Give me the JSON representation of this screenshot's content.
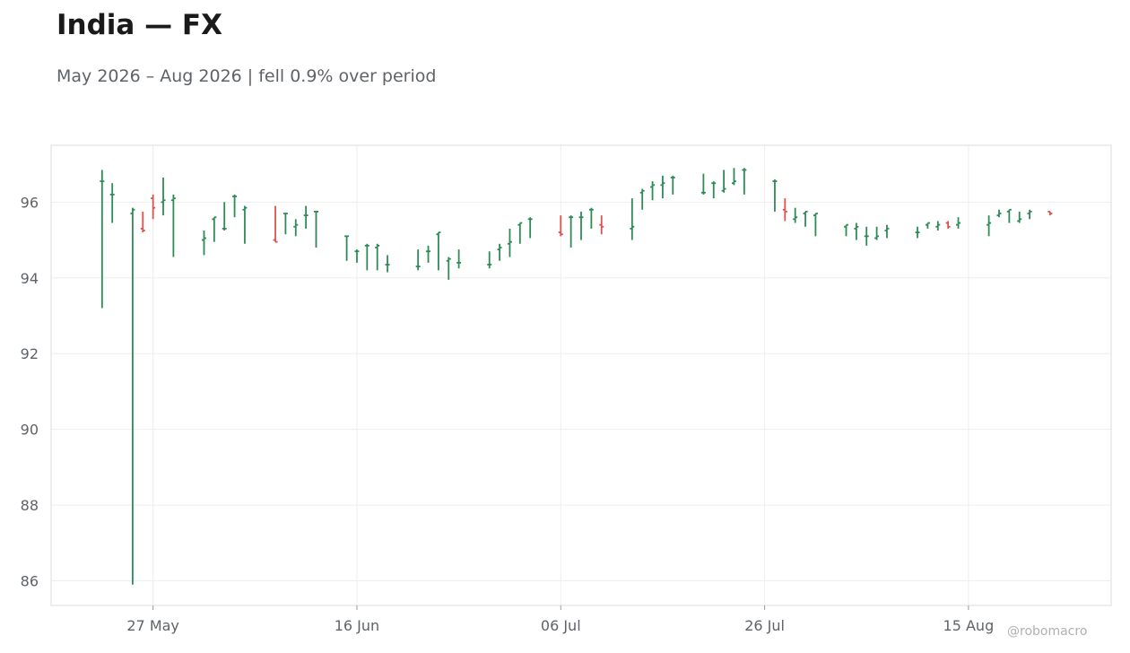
{
  "header": {
    "title": "India — FX",
    "subtitle": "May 2026 – Aug 2026 | fell 0.9% over period"
  },
  "watermark": "@robomacro",
  "colors": {
    "up": "#2e8b57",
    "down": "#d9534f",
    "grid": "#eeeeee",
    "frame": "#dddddd"
  },
  "chart_data": {
    "type": "ohlc",
    "title": "India — FX",
    "subtitle": "May 2026 – Aug 2026 | fell 0.9% over period",
    "xlabel": "",
    "ylabel": "",
    "ylim": [
      85.35,
      97.5
    ],
    "xlim": [
      "2026-05-17",
      "2026-08-29"
    ],
    "grid": true,
    "x_ticks": [
      {
        "date": "2026-05-27",
        "label": "27 May"
      },
      {
        "date": "2026-06-16",
        "label": "16 Jun"
      },
      {
        "date": "2026-07-06",
        "label": "06 Jul"
      },
      {
        "date": "2026-07-26",
        "label": "26 Jul"
      },
      {
        "date": "2026-08-15",
        "label": "15 Aug"
      }
    ],
    "y_ticks": [
      86,
      88,
      90,
      92,
      94,
      96
    ],
    "bars": [
      {
        "date": "2026-05-22",
        "open": 96.55,
        "high": 96.85,
        "low": 93.2,
        "close": 96.55
      },
      {
        "date": "2026-05-23",
        "open": 96.2,
        "high": 96.5,
        "low": 95.45,
        "close": 96.2
      },
      {
        "date": "2026-05-25",
        "open": 95.7,
        "high": 95.85,
        "low": 85.9,
        "close": 95.8
      },
      {
        "date": "2026-05-26",
        "open": 95.3,
        "high": 95.75,
        "low": 95.2,
        "close": 95.25
      },
      {
        "date": "2026-05-27",
        "open": 96.1,
        "high": 96.2,
        "low": 95.55,
        "close": 95.85
      },
      {
        "date": "2026-05-28",
        "open": 96.0,
        "high": 96.65,
        "low": 95.65,
        "close": 96.05
      },
      {
        "date": "2026-05-29",
        "open": 96.05,
        "high": 96.2,
        "low": 94.55,
        "close": 96.1
      },
      {
        "date": "2026-06-01",
        "open": 95.0,
        "high": 95.25,
        "low": 94.6,
        "close": 95.05
      },
      {
        "date": "2026-06-02",
        "open": 95.55,
        "high": 95.6,
        "low": 94.95,
        "close": 95.6
      },
      {
        "date": "2026-06-03",
        "open": 95.3,
        "high": 96.0,
        "low": 95.25,
        "close": 95.3
      },
      {
        "date": "2026-06-04",
        "open": 96.15,
        "high": 96.2,
        "low": 95.6,
        "close": 96.15
      },
      {
        "date": "2026-06-05",
        "open": 95.8,
        "high": 95.9,
        "low": 94.9,
        "close": 95.85
      },
      {
        "date": "2026-06-08",
        "open": 95.0,
        "high": 95.9,
        "low": 94.95,
        "close": 94.95
      },
      {
        "date": "2026-06-09",
        "open": 95.7,
        "high": 95.7,
        "low": 95.15,
        "close": 95.7
      },
      {
        "date": "2026-06-10",
        "open": 95.35,
        "high": 95.55,
        "low": 95.1,
        "close": 95.4
      },
      {
        "date": "2026-06-11",
        "open": 95.65,
        "high": 95.9,
        "low": 95.3,
        "close": 95.65
      },
      {
        "date": "2026-06-12",
        "open": 95.75,
        "high": 95.75,
        "low": 94.8,
        "close": 95.75
      },
      {
        "date": "2026-06-15",
        "open": 95.1,
        "high": 95.1,
        "low": 94.45,
        "close": 95.1
      },
      {
        "date": "2026-06-16",
        "open": 94.7,
        "high": 94.75,
        "low": 94.4,
        "close": 94.7
      },
      {
        "date": "2026-06-17",
        "open": 94.85,
        "high": 94.9,
        "low": 94.2,
        "close": 94.85
      },
      {
        "date": "2026-06-18",
        "open": 94.8,
        "high": 94.9,
        "low": 94.2,
        "close": 94.85
      },
      {
        "date": "2026-06-19",
        "open": 94.35,
        "high": 94.6,
        "low": 94.15,
        "close": 94.35
      },
      {
        "date": "2026-06-22",
        "open": 94.3,
        "high": 94.75,
        "low": 94.2,
        "close": 94.3
      },
      {
        "date": "2026-06-23",
        "open": 94.7,
        "high": 94.85,
        "low": 94.4,
        "close": 94.7
      },
      {
        "date": "2026-06-24",
        "open": 95.15,
        "high": 95.2,
        "low": 94.2,
        "close": 95.2
      },
      {
        "date": "2026-06-25",
        "open": 94.45,
        "high": 94.55,
        "low": 93.95,
        "close": 94.5
      },
      {
        "date": "2026-06-26",
        "open": 94.4,
        "high": 94.75,
        "low": 94.25,
        "close": 94.4
      },
      {
        "date": "2026-06-29",
        "open": 94.35,
        "high": 94.7,
        "low": 94.25,
        "close": 94.35
      },
      {
        "date": "2026-06-30",
        "open": 94.75,
        "high": 94.9,
        "low": 94.45,
        "close": 94.8
      },
      {
        "date": "2026-07-01",
        "open": 94.9,
        "high": 95.3,
        "low": 94.55,
        "close": 94.95
      },
      {
        "date": "2026-07-02",
        "open": 95.4,
        "high": 95.45,
        "low": 94.9,
        "close": 95.45
      },
      {
        "date": "2026-07-03",
        "open": 95.55,
        "high": 95.6,
        "low": 95.05,
        "close": 95.55
      },
      {
        "date": "2026-07-06",
        "open": 95.2,
        "high": 95.65,
        "low": 95.1,
        "close": 95.15
      },
      {
        "date": "2026-07-07",
        "open": 95.6,
        "high": 95.65,
        "low": 94.8,
        "close": 95.6
      },
      {
        "date": "2026-07-08",
        "open": 95.6,
        "high": 95.75,
        "low": 95.0,
        "close": 95.6
      },
      {
        "date": "2026-07-09",
        "open": 95.8,
        "high": 95.85,
        "low": 95.3,
        "close": 95.8
      },
      {
        "date": "2026-07-10",
        "open": 95.4,
        "high": 95.65,
        "low": 95.15,
        "close": 95.35
      },
      {
        "date": "2026-07-13",
        "open": 95.3,
        "high": 96.1,
        "low": 95.0,
        "close": 95.35
      },
      {
        "date": "2026-07-14",
        "open": 96.25,
        "high": 96.35,
        "low": 95.8,
        "close": 96.3
      },
      {
        "date": "2026-07-15",
        "open": 96.4,
        "high": 96.55,
        "low": 96.05,
        "close": 96.45
      },
      {
        "date": "2026-07-16",
        "open": 96.45,
        "high": 96.7,
        "low": 96.1,
        "close": 96.5
      },
      {
        "date": "2026-07-17",
        "open": 96.65,
        "high": 96.7,
        "low": 96.2,
        "close": 96.65
      },
      {
        "date": "2026-07-20",
        "open": 96.25,
        "high": 96.75,
        "low": 96.2,
        "close": 96.25
      },
      {
        "date": "2026-07-21",
        "open": 96.5,
        "high": 96.55,
        "low": 96.1,
        "close": 96.5
      },
      {
        "date": "2026-07-22",
        "open": 96.3,
        "high": 96.85,
        "low": 96.25,
        "close": 96.35
      },
      {
        "date": "2026-07-23",
        "open": 96.5,
        "high": 96.9,
        "low": 96.45,
        "close": 96.55
      },
      {
        "date": "2026-07-24",
        "open": 96.85,
        "high": 96.9,
        "low": 96.2,
        "close": 96.85
      },
      {
        "date": "2026-07-27",
        "open": 96.55,
        "high": 96.6,
        "low": 95.75,
        "close": 96.55
      },
      {
        "date": "2026-07-28",
        "open": 95.8,
        "high": 96.1,
        "low": 95.5,
        "close": 95.75
      },
      {
        "date": "2026-07-29",
        "open": 95.55,
        "high": 95.85,
        "low": 95.45,
        "close": 95.6
      },
      {
        "date": "2026-07-30",
        "open": 95.7,
        "high": 95.75,
        "low": 95.35,
        "close": 95.75
      },
      {
        "date": "2026-07-31",
        "open": 95.65,
        "high": 95.7,
        "low": 95.1,
        "close": 95.7
      },
      {
        "date": "2026-08-03",
        "open": 95.35,
        "high": 95.4,
        "low": 95.1,
        "close": 95.4
      },
      {
        "date": "2026-08-04",
        "open": 95.3,
        "high": 95.45,
        "low": 95.0,
        "close": 95.35
      },
      {
        "date": "2026-08-05",
        "open": 95.1,
        "high": 95.35,
        "low": 94.85,
        "close": 95.1
      },
      {
        "date": "2026-08-06",
        "open": 95.05,
        "high": 95.35,
        "low": 95.0,
        "close": 95.1
      },
      {
        "date": "2026-08-07",
        "open": 95.25,
        "high": 95.4,
        "low": 95.05,
        "close": 95.3
      },
      {
        "date": "2026-08-10",
        "open": 95.2,
        "high": 95.35,
        "low": 95.05,
        "close": 95.2
      },
      {
        "date": "2026-08-11",
        "open": 95.4,
        "high": 95.45,
        "low": 95.3,
        "close": 95.45
      },
      {
        "date": "2026-08-12",
        "open": 95.35,
        "high": 95.5,
        "low": 95.25,
        "close": 95.4
      },
      {
        "date": "2026-08-13",
        "open": 95.45,
        "high": 95.5,
        "low": 95.3,
        "close": 95.35
      },
      {
        "date": "2026-08-14",
        "open": 95.4,
        "high": 95.6,
        "low": 95.3,
        "close": 95.45
      },
      {
        "date": "2026-08-17",
        "open": 95.4,
        "high": 95.65,
        "low": 95.1,
        "close": 95.45
      },
      {
        "date": "2026-08-18",
        "open": 95.65,
        "high": 95.8,
        "low": 95.6,
        "close": 95.7
      },
      {
        "date": "2026-08-19",
        "open": 95.75,
        "high": 95.8,
        "low": 95.45,
        "close": 95.8
      },
      {
        "date": "2026-08-20",
        "open": 95.5,
        "high": 95.75,
        "low": 95.45,
        "close": 95.55
      },
      {
        "date": "2026-08-21",
        "open": 95.7,
        "high": 95.8,
        "low": 95.55,
        "close": 95.75
      },
      {
        "date": "2026-08-23",
        "open": 95.75,
        "high": 95.75,
        "low": 95.65,
        "close": 95.7
      }
    ]
  }
}
